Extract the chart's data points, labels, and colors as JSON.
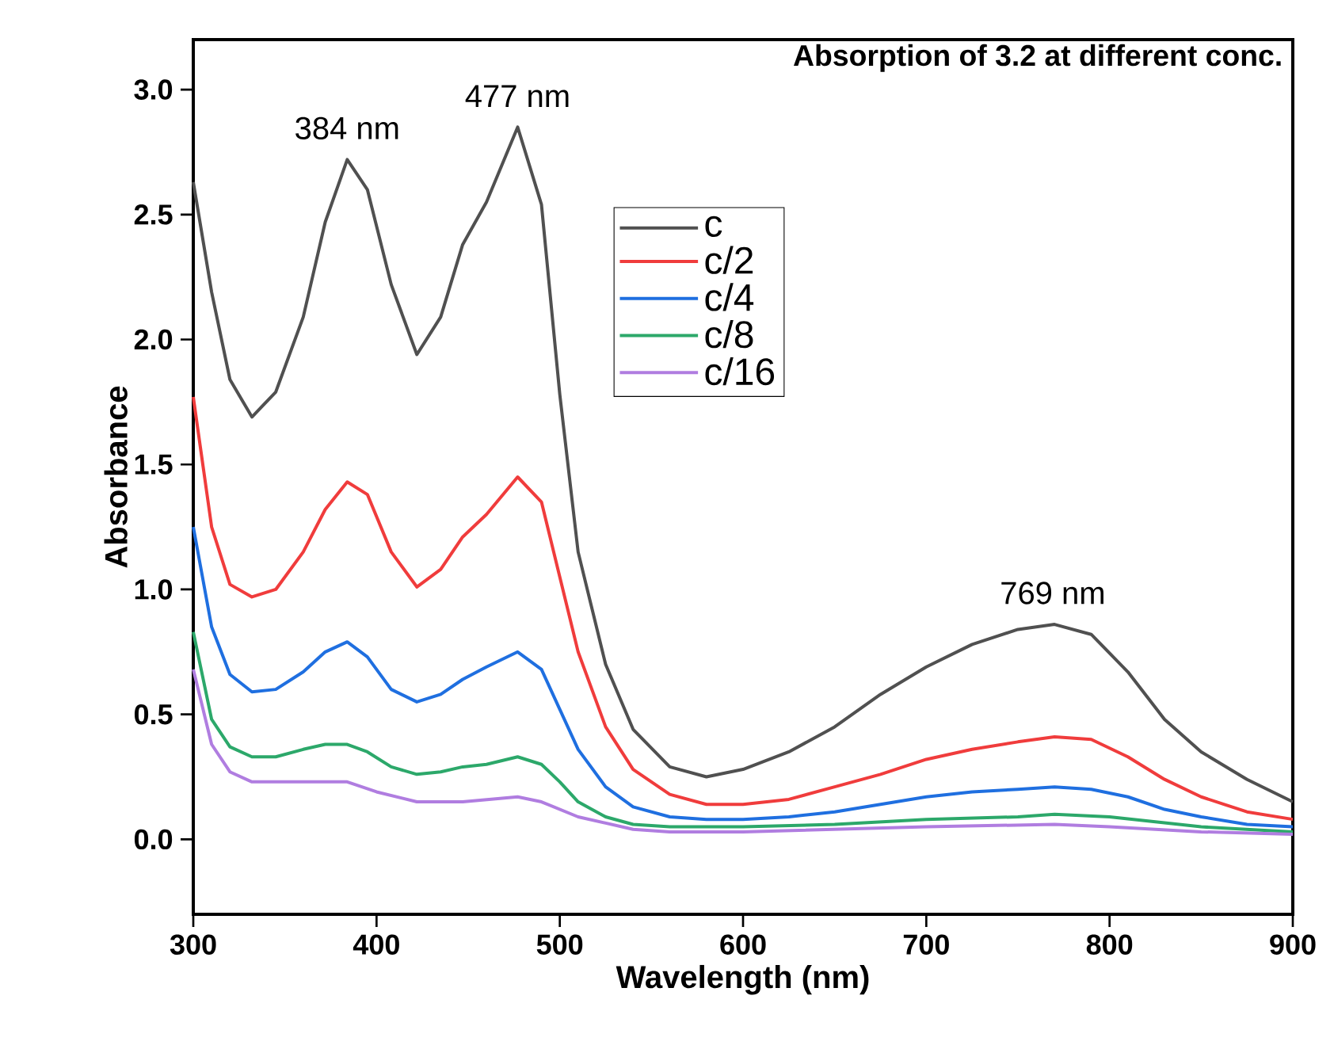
{
  "chart_data": {
    "type": "line",
    "title": "Absorption of 3.2 at different conc.",
    "xlabel": "Wavelength (nm)",
    "ylabel": "Absorbance",
    "xlim": [
      300,
      900
    ],
    "xticks": [
      300,
      400,
      500,
      600,
      700,
      800,
      900
    ],
    "ylim": [
      -0.3,
      3.2
    ],
    "yticks": [
      {
        "value": 0,
        "label": "0.0"
      },
      {
        "value": 0.5,
        "label": "0.5"
      },
      {
        "value": 1,
        "label": "1.0"
      },
      {
        "value": 1.5,
        "label": "1.5"
      },
      {
        "value": 2,
        "label": "2.0"
      },
      {
        "value": 2.5,
        "label": "2.5"
      },
      {
        "value": 3,
        "label": "3.0"
      }
    ],
    "grid": false,
    "legend": "center",
    "annotations": [
      {
        "text": "384 nm",
        "x": 384,
        "y": 2.72
      },
      {
        "text": "477 nm",
        "x": 477,
        "y": 2.85
      },
      {
        "text": "769 nm",
        "x": 769,
        "y": 0.86
      }
    ],
    "series": [
      {
        "name": "c",
        "color": "#505050",
        "x": [
          300,
          310,
          320,
          332,
          345,
          360,
          372,
          384,
          395,
          408,
          422,
          435,
          447,
          460,
          477,
          490,
          500,
          510,
          525,
          540,
          560,
          580,
          600,
          625,
          650,
          675,
          700,
          725,
          750,
          770,
          790,
          810,
          830,
          850,
          875,
          900
        ],
        "values": [
          2.63,
          2.19,
          1.84,
          1.69,
          1.79,
          2.09,
          2.47,
          2.72,
          2.6,
          2.22,
          1.94,
          2.09,
          2.38,
          2.55,
          2.85,
          2.54,
          1.78,
          1.15,
          0.7,
          0.44,
          0.29,
          0.25,
          0.28,
          0.35,
          0.45,
          0.58,
          0.69,
          0.78,
          0.84,
          0.86,
          0.82,
          0.67,
          0.48,
          0.35,
          0.24,
          0.15
        ]
      },
      {
        "name": "c/2",
        "color": "#f03c3c",
        "x": [
          300,
          310,
          320,
          332,
          345,
          360,
          372,
          384,
          395,
          408,
          422,
          435,
          447,
          460,
          477,
          490,
          500,
          510,
          525,
          540,
          560,
          580,
          600,
          625,
          650,
          675,
          700,
          725,
          750,
          770,
          790,
          810,
          830,
          850,
          875,
          900
        ],
        "values": [
          1.77,
          1.25,
          1.02,
          0.97,
          1.0,
          1.15,
          1.32,
          1.43,
          1.38,
          1.15,
          1.01,
          1.08,
          1.21,
          1.3,
          1.45,
          1.35,
          1.05,
          0.75,
          0.45,
          0.28,
          0.18,
          0.14,
          0.14,
          0.16,
          0.21,
          0.26,
          0.32,
          0.36,
          0.39,
          0.41,
          0.4,
          0.33,
          0.24,
          0.17,
          0.11,
          0.08
        ]
      },
      {
        "name": "c/4",
        "color": "#1f6fe0",
        "x": [
          300,
          310,
          320,
          332,
          345,
          360,
          372,
          384,
          395,
          408,
          422,
          435,
          447,
          460,
          477,
          490,
          500,
          510,
          525,
          540,
          560,
          580,
          600,
          625,
          650,
          675,
          700,
          725,
          750,
          770,
          790,
          810,
          830,
          850,
          875,
          900
        ],
        "values": [
          1.25,
          0.85,
          0.66,
          0.59,
          0.6,
          0.67,
          0.75,
          0.79,
          0.73,
          0.6,
          0.55,
          0.58,
          0.64,
          0.69,
          0.75,
          0.68,
          0.52,
          0.36,
          0.21,
          0.13,
          0.09,
          0.08,
          0.08,
          0.09,
          0.11,
          0.14,
          0.17,
          0.19,
          0.2,
          0.21,
          0.2,
          0.17,
          0.12,
          0.09,
          0.06,
          0.05
        ]
      },
      {
        "name": "c/8",
        "color": "#2ca86a",
        "x": [
          300,
          310,
          320,
          332,
          345,
          360,
          372,
          384,
          395,
          408,
          422,
          435,
          447,
          460,
          477,
          490,
          500,
          510,
          525,
          540,
          560,
          600,
          650,
          700,
          750,
          770,
          800,
          850,
          900
        ],
        "values": [
          0.83,
          0.48,
          0.37,
          0.33,
          0.33,
          0.36,
          0.38,
          0.38,
          0.35,
          0.29,
          0.26,
          0.27,
          0.29,
          0.3,
          0.33,
          0.3,
          0.23,
          0.15,
          0.09,
          0.06,
          0.05,
          0.05,
          0.06,
          0.08,
          0.09,
          0.1,
          0.09,
          0.05,
          0.03
        ]
      },
      {
        "name": "c/16",
        "color": "#b07de0",
        "x": [
          300,
          310,
          320,
          332,
          345,
          360,
          384,
          400,
          422,
          447,
          477,
          490,
          510,
          540,
          560,
          600,
          700,
          770,
          800,
          850,
          900
        ],
        "values": [
          0.68,
          0.38,
          0.27,
          0.23,
          0.23,
          0.23,
          0.23,
          0.19,
          0.15,
          0.15,
          0.17,
          0.15,
          0.09,
          0.04,
          0.03,
          0.03,
          0.05,
          0.06,
          0.05,
          0.03,
          0.02
        ]
      }
    ]
  }
}
